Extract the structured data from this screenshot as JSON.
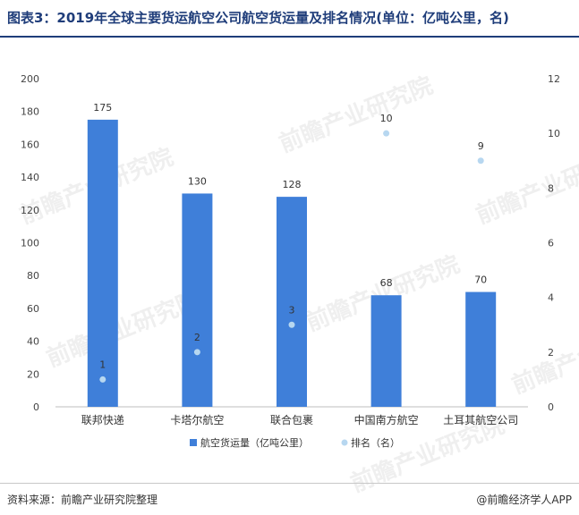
{
  "header": {
    "title": "图表3：2019年全球主要货运航空公司航空货运量及排名情况(单位：亿吨公里，名)"
  },
  "footer": {
    "source": "资料来源：前瞻产业研究院整理",
    "credit": "@前瞻经济学人APP"
  },
  "watermark": {
    "text": "前瞻产业研究院"
  },
  "colors": {
    "bar": "#3f7fd9",
    "point": "#b7d7f0",
    "title": "#1f3d7a"
  },
  "chart_data": {
    "type": "bar",
    "categories": [
      "联邦快递",
      "卡塔尔航空",
      "联合包裹",
      "中国南方航空",
      "土耳其航空公司"
    ],
    "series": [
      {
        "name": "航空货运量（亿吨公里）",
        "type": "bar",
        "axis": "left",
        "values": [
          175,
          130,
          128,
          68,
          70
        ],
        "labels": [
          "175",
          "130",
          "128",
          "68",
          "70"
        ]
      },
      {
        "name": "排名（名）",
        "type": "scatter",
        "axis": "right",
        "values": [
          1,
          2,
          3,
          10,
          9
        ],
        "labels": [
          "1",
          "2",
          "3",
          "10",
          "9"
        ]
      }
    ],
    "y_left": {
      "min": 0,
      "max": 200,
      "ticks": [
        "0",
        "20",
        "40",
        "60",
        "80",
        "100",
        "120",
        "140",
        "160",
        "180",
        "200"
      ]
    },
    "y_right": {
      "min": 0,
      "max": 12,
      "ticks": [
        "0",
        "2",
        "4",
        "6",
        "8",
        "10",
        "12"
      ]
    },
    "grid": false,
    "legend_position": "bottom"
  }
}
